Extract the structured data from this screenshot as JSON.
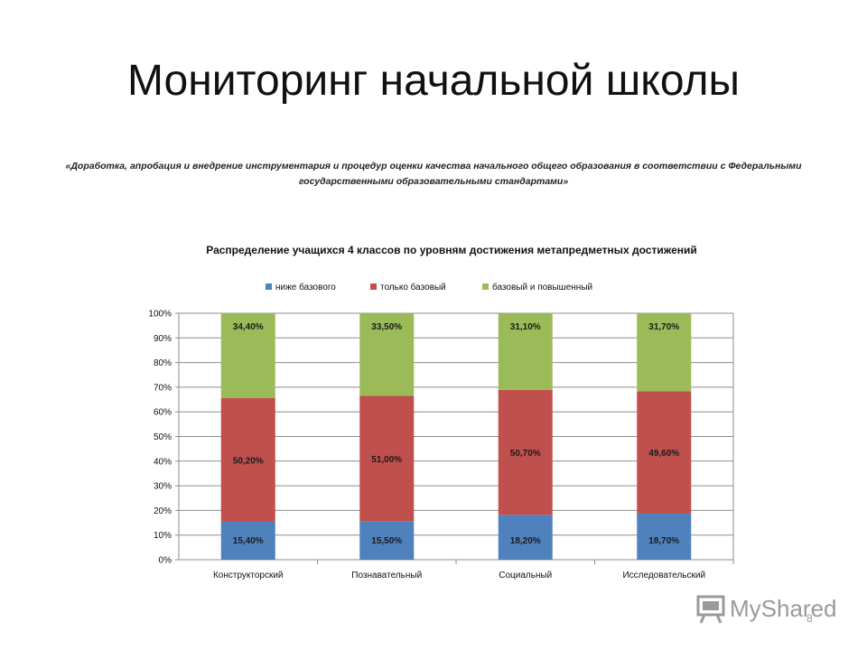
{
  "slide": {
    "title": "Мониторинг начальной школы",
    "subtitle": "«Доработка, апробация и внедрение инструментария и процедур оценки качества начального общего образования в соответствии с Федеральными государственными образовательными стандартами»",
    "page_number": "8"
  },
  "watermark": {
    "text": "MyShared",
    "icon": "presentation-board-icon"
  },
  "chart_data": {
    "type": "bar",
    "stacked": true,
    "percent": true,
    "title": "Распределение учащихся 4 классов по уровням достижения метапредметных достижений",
    "categories": [
      "Конструкторский",
      "Познавательный",
      "Социальный",
      "Исследовательский"
    ],
    "series": [
      {
        "name": "ниже базового",
        "color": "#4f81bd",
        "values": [
          15.4,
          15.5,
          18.2,
          18.7
        ],
        "labels": [
          "15,40%",
          "15,50%",
          "18,20%",
          "18,70%"
        ]
      },
      {
        "name": "только базовый",
        "color": "#c0504d",
        "values": [
          50.2,
          51.0,
          50.7,
          49.6
        ],
        "labels": [
          "50,20%",
          "51,00%",
          "50,70%",
          "49,60%"
        ]
      },
      {
        "name": "базовый и повышенный",
        "color": "#9bbb59",
        "values": [
          34.4,
          33.5,
          31.1,
          31.7
        ],
        "labels": [
          "34,40%",
          "33,50%",
          "31,10%",
          "31,70%"
        ]
      }
    ],
    "ylim": [
      0,
      100
    ],
    "yticks": [
      "0%",
      "10%",
      "20%",
      "30%",
      "40%",
      "50%",
      "60%",
      "70%",
      "80%",
      "90%",
      "100%"
    ],
    "grid": true,
    "legend": "top"
  }
}
